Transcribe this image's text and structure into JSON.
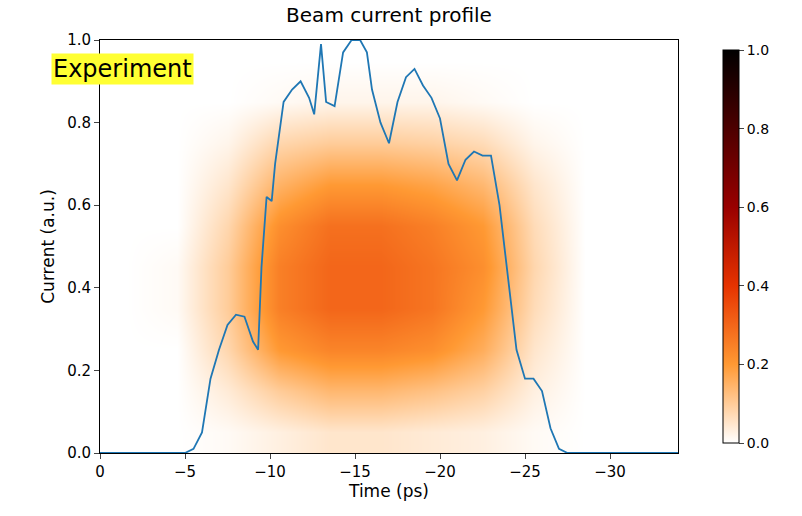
{
  "chart_data": {
    "type": "heatmap",
    "title": "Beam current profile",
    "x_label": "Time (ps)",
    "y_label": "Current (a.u.)",
    "annotations": [
      "Experiment"
    ],
    "grid": false,
    "xlim": [
      0,
      -34
    ],
    "xticks": [
      0,
      {
        "value": -5,
        "label": "−5"
      },
      {
        "value": -10,
        "label": "−10"
      },
      {
        "value": -15,
        "label": "−15"
      },
      {
        "value": -20,
        "label": "−20"
      },
      {
        "value": -25,
        "label": "−25"
      },
      {
        "value": -30,
        "label": "−30"
      }
    ],
    "ylim": [
      0,
      1
    ],
    "yticks": [
      {
        "value": 0,
        "label": "0.0"
      },
      {
        "value": 0.2,
        "label": "0.2"
      },
      {
        "value": 0.4,
        "label": "0.4"
      },
      {
        "value": 0.6,
        "label": "0.6"
      },
      {
        "value": 0.8,
        "label": "0.8"
      },
      {
        "value": 1,
        "label": "1.0"
      }
    ],
    "heatmap": {
      "x": [
        -1.5,
        -4.5,
        -7.5,
        -10.5,
        -13.5,
        -16.5,
        -19.5,
        -22.5,
        -25.5,
        -28.5,
        -31.5
      ],
      "y": [
        0.05,
        0.15,
        0.25,
        0.35,
        0.45,
        0.55,
        0.65,
        0.75,
        0.85,
        0.95
      ],
      "cells": [
        [
          0,
          0,
          0.01,
          0.03,
          0.05,
          0.05,
          0.04,
          0.03,
          0.01,
          0,
          0
        ],
        [
          0,
          0,
          0.04,
          0.1,
          0.14,
          0.14,
          0.12,
          0.09,
          0.03,
          0,
          0
        ],
        [
          0,
          0,
          0.08,
          0.2,
          0.24,
          0.24,
          0.22,
          0.16,
          0.05,
          0,
          0
        ],
        [
          0,
          0.01,
          0.1,
          0.25,
          0.3,
          0.3,
          0.27,
          0.2,
          0.07,
          0,
          0
        ],
        [
          0,
          0.01,
          0.1,
          0.25,
          0.3,
          0.3,
          0.27,
          0.22,
          0.08,
          0,
          0
        ],
        [
          0,
          0,
          0.08,
          0.22,
          0.28,
          0.28,
          0.25,
          0.2,
          0.07,
          0,
          0
        ],
        [
          0,
          0,
          0.05,
          0.15,
          0.2,
          0.2,
          0.18,
          0.14,
          0.05,
          0,
          0
        ],
        [
          0,
          0,
          0.02,
          0.08,
          0.1,
          0.1,
          0.09,
          0.07,
          0.02,
          0,
          0
        ],
        [
          0,
          0,
          0,
          0.01,
          0.02,
          0.02,
          0.02,
          0.01,
          0,
          0,
          0
        ],
        [
          0,
          0,
          0,
          0,
          0,
          0,
          0,
          0,
          0,
          0,
          0
        ]
      ],
      "colorbar_range": [
        0,
        1
      ],
      "colorbar_ticks": [
        {
          "value": 0,
          "label": "0.0"
        },
        {
          "value": 0.2,
          "label": "0.2"
        },
        {
          "value": 0.4,
          "label": "0.4"
        },
        {
          "value": 0.6,
          "label": "0.6"
        },
        {
          "value": 0.8,
          "label": "0.8"
        },
        {
          "value": 1,
          "label": "1.0"
        }
      ]
    },
    "series": [
      {
        "type": "line",
        "color": "#1f77b4",
        "x": [
          0,
          -5,
          -5.5,
          -6,
          -6.5,
          -7,
          -7.5,
          -8,
          -8.5,
          -9,
          -9.3,
          -9.5,
          -9.8,
          -10.1,
          -10.3,
          -10.8,
          -11.3,
          -11.8,
          -12.3,
          -12.6,
          -13,
          -13.3,
          -13.8,
          -14.3,
          -14.8,
          -15.3,
          -15.7,
          -16,
          -16.5,
          -17,
          -17.5,
          -18,
          -18.5,
          -19,
          -19.5,
          -20,
          -20.5,
          -21,
          -21.5,
          -22,
          -22.5,
          -23,
          -23.5,
          -24,
          -24.5,
          -25,
          -25.5,
          -26,
          -26.5,
          -27,
          -27.5,
          -34
        ],
        "values": [
          0,
          0,
          0.01,
          0.05,
          0.18,
          0.25,
          0.31,
          0.335,
          0.33,
          0.27,
          0.25,
          0.45,
          0.62,
          0.61,
          0.7,
          0.85,
          0.88,
          0.9,
          0.86,
          0.82,
          0.99,
          0.85,
          0.84,
          0.97,
          1.0,
          1.0,
          0.97,
          0.88,
          0.8,
          0.75,
          0.85,
          0.91,
          0.93,
          0.89,
          0.86,
          0.81,
          0.7,
          0.66,
          0.71,
          0.73,
          0.72,
          0.72,
          0.6,
          0.42,
          0.25,
          0.18,
          0.18,
          0.15,
          0.06,
          0.01,
          0,
          0
        ]
      }
    ]
  }
}
